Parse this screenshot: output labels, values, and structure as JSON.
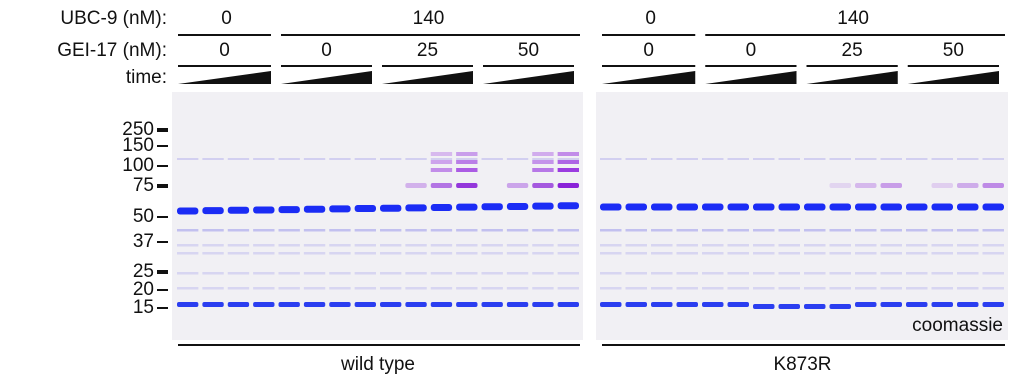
{
  "row_labels": {
    "ubc9": "UBC-9 (nM):",
    "gei17": "GEI-17 (nM):",
    "time": "time:"
  },
  "panels": [
    {
      "ubc9": [
        0,
        140
      ],
      "gei17": [
        0,
        0,
        25,
        50
      ],
      "label": "wild type"
    },
    {
      "ubc9": [
        0,
        140
      ],
      "gei17": [
        0,
        0,
        25,
        50
      ],
      "label": "K873R"
    }
  ],
  "markers": [
    250,
    150,
    100,
    75,
    50,
    37,
    25,
    20,
    15
  ],
  "stain": "coomassie"
}
